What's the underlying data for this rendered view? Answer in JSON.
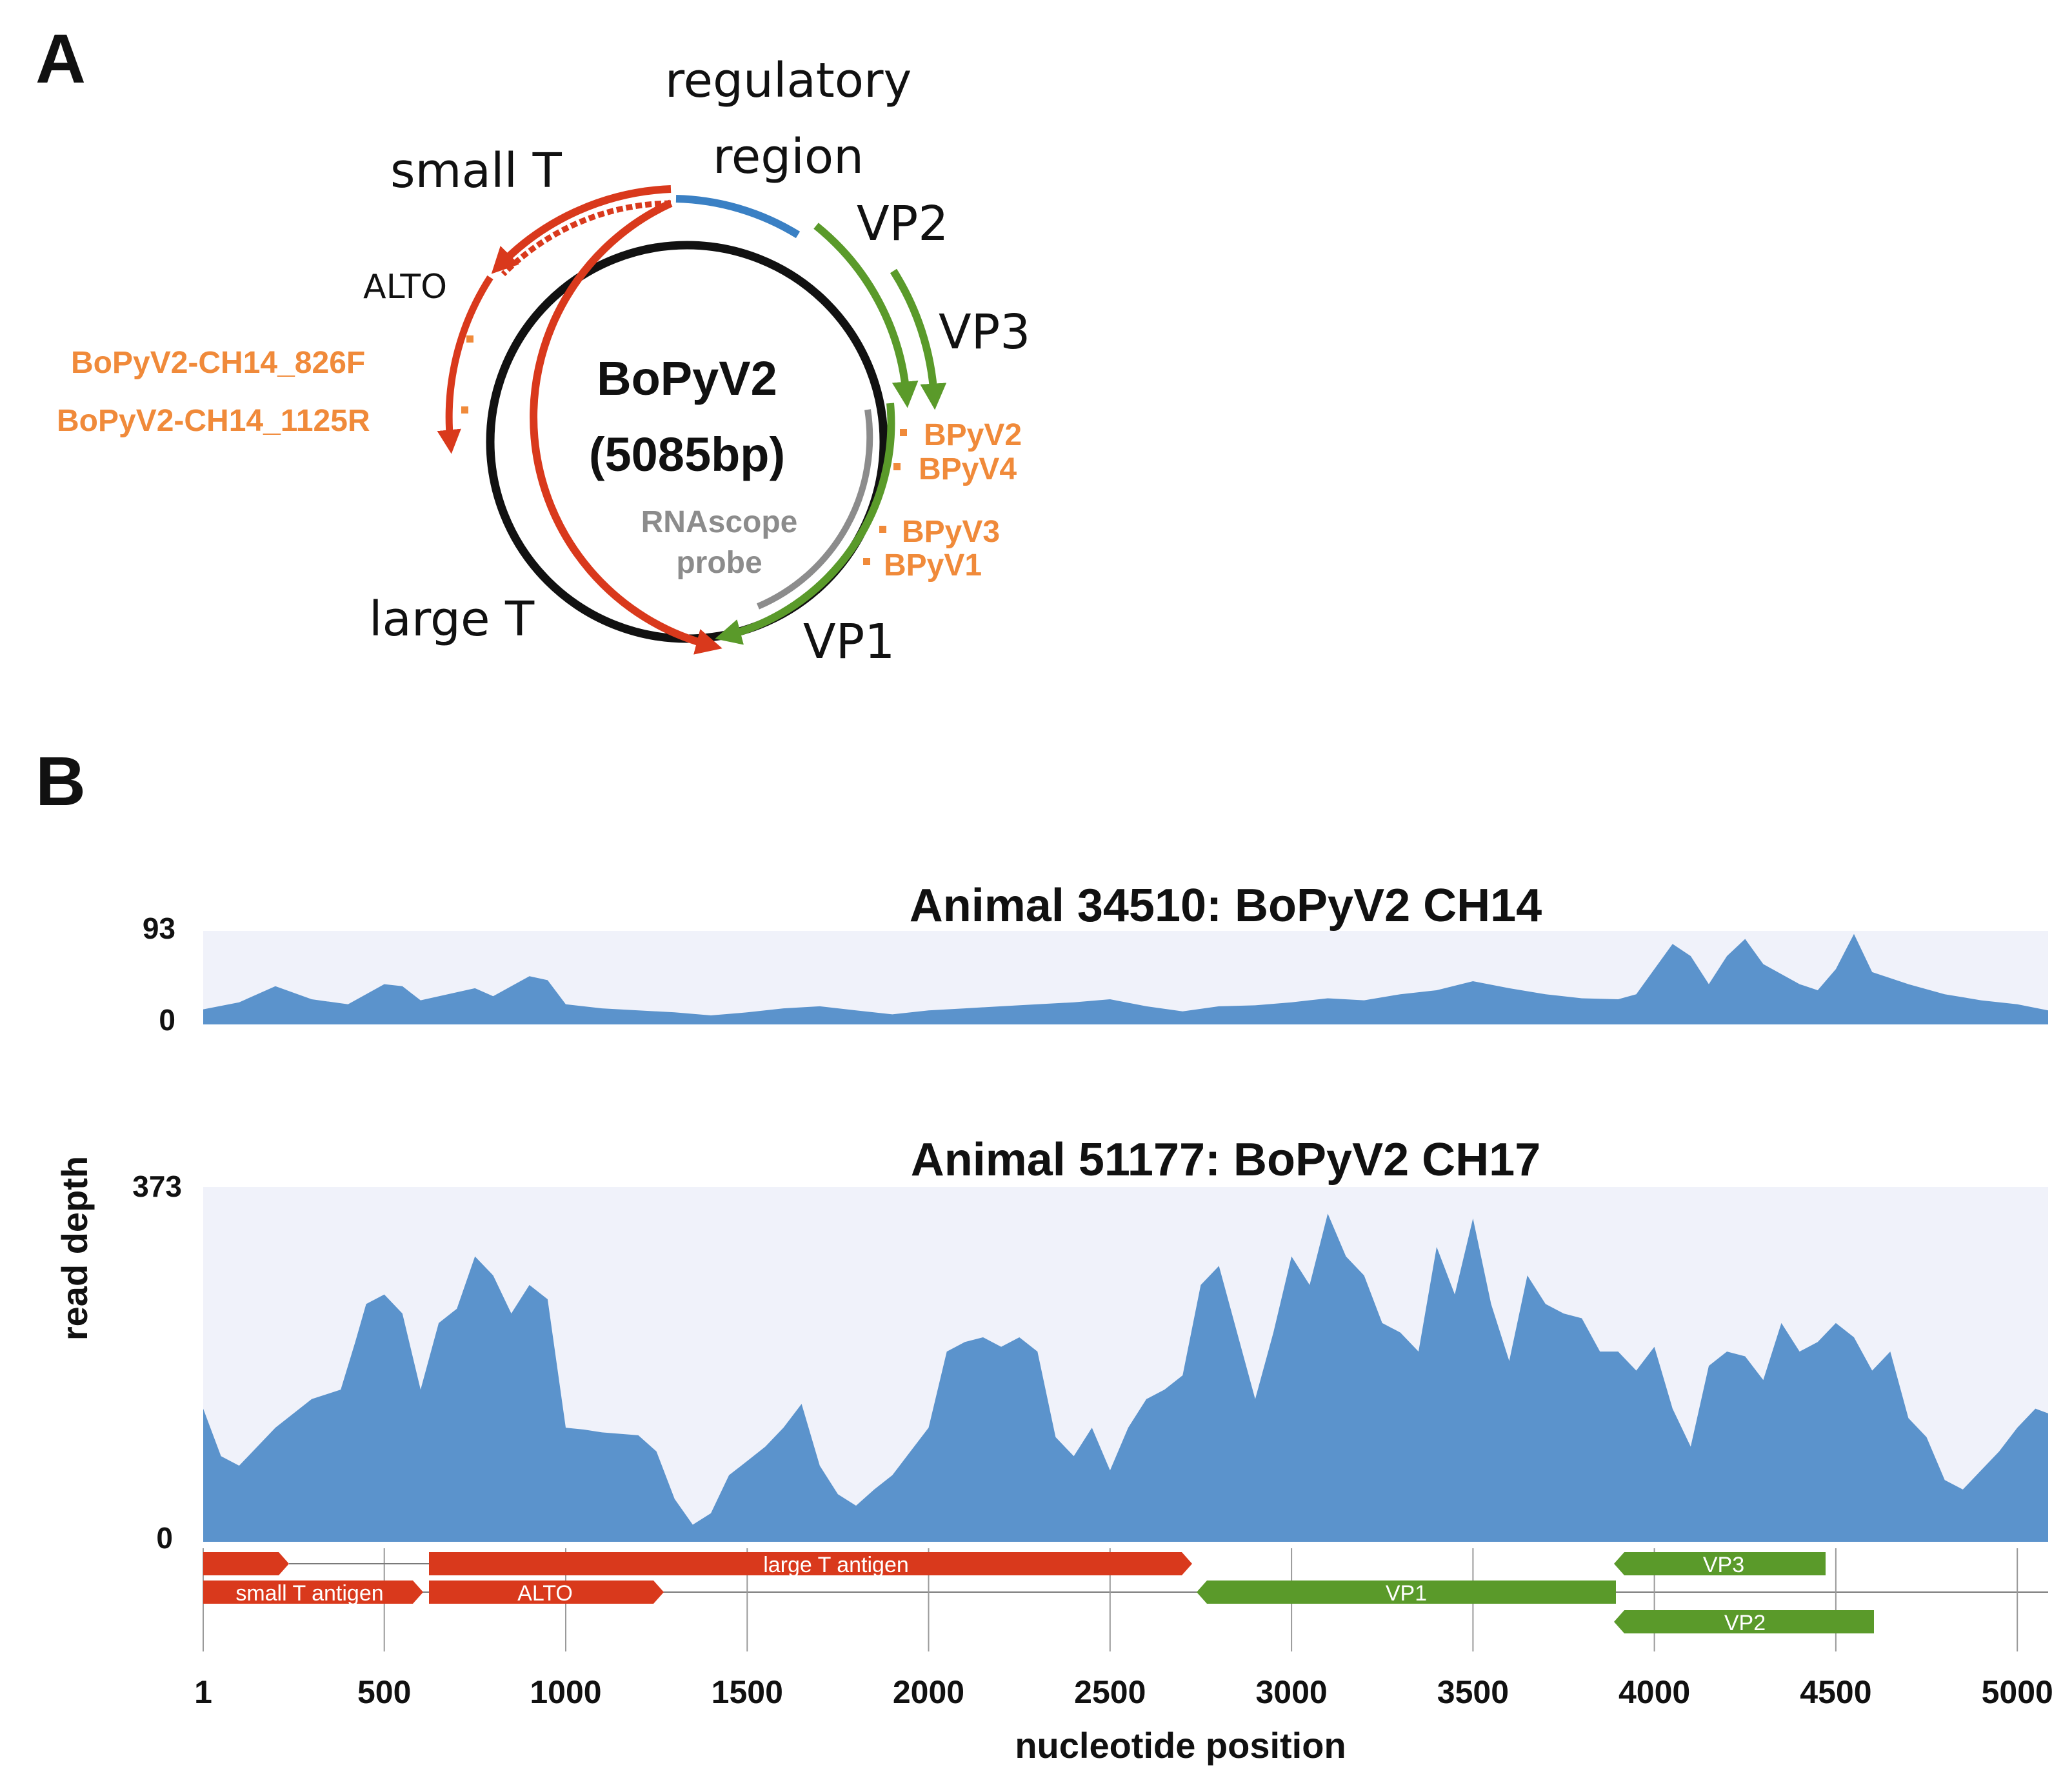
{
  "panel_a": {
    "label": "A",
    "genome_name": "BoPyV2",
    "genome_size": "(5085bp)",
    "labels": {
      "regulatory_line1": "regulatory",
      "regulatory_line2": "region",
      "small_t": "small T",
      "alto": "ALTO",
      "large_t": "large T",
      "vp1": "VP1",
      "vp2": "VP2",
      "vp3": "VP3",
      "rnascope_line1": "RNAscope",
      "rnascope_line2": "probe"
    },
    "primers": {
      "forward": "BoPyV2-CH14_826F",
      "reverse": "BoPyV2-CH14_1125R",
      "bpyv2": "BPyV2",
      "bpyv4": "BPyV4",
      "bpyv3": "BPyV3",
      "bpyv1": "BPyV1"
    }
  },
  "panel_b": {
    "label": "B",
    "ylabel": "read depth",
    "xlabel": "nucleotide position",
    "annotations": {
      "large_t_antigen": "large T antigen",
      "small_t_antigen": "small T antigen",
      "alto": "ALTO",
      "vp1": "VP1",
      "vp2": "VP2",
      "vp3": "VP3"
    }
  },
  "colors": {
    "red": "#d9391c",
    "green": "#5a9a2a",
    "blue": "#3a80c4",
    "orange": "#f08a3a",
    "grey": "#8c8c8c",
    "coverage_fill": "#5b93cc",
    "plot_bg": "#f0f2fa"
  },
  "chart_data": [
    {
      "type": "area",
      "title": "Animal 34510: BoPyV2 CH14",
      "xlabel": "nucleotide position",
      "ylabel": "read depth",
      "xlim": [
        1,
        5085
      ],
      "ylim": [
        0,
        93
      ],
      "ytick_labels": [
        "93",
        "0"
      ],
      "x": [
        1,
        100,
        200,
        300,
        400,
        500,
        550,
        600,
        700,
        750,
        800,
        900,
        950,
        1000,
        1100,
        1200,
        1300,
        1400,
        1500,
        1600,
        1700,
        1800,
        1900,
        2000,
        2100,
        2200,
        2300,
        2400,
        2500,
        2600,
        2700,
        2800,
        2900,
        3000,
        3100,
        3200,
        3300,
        3400,
        3500,
        3600,
        3700,
        3800,
        3900,
        3950,
        4000,
        4050,
        4100,
        4150,
        4200,
        4250,
        4300,
        4400,
        4450,
        4500,
        4550,
        4600,
        4700,
        4800,
        4900,
        5000,
        5085
      ],
      "series": [
        {
          "name": "read depth",
          "values": [
            15,
            22,
            38,
            25,
            20,
            40,
            38,
            24,
            32,
            36,
            28,
            48,
            44,
            20,
            16,
            14,
            12,
            9,
            12,
            16,
            18,
            14,
            10,
            14,
            16,
            18,
            20,
            22,
            25,
            18,
            13,
            18,
            19,
            22,
            26,
            24,
            30,
            34,
            43,
            36,
            30,
            26,
            25,
            30,
            55,
            80,
            68,
            40,
            68,
            85,
            60,
            40,
            34,
            55,
            90,
            52,
            40,
            30,
            24,
            20,
            14
          ]
        }
      ]
    },
    {
      "type": "area",
      "title": "Animal 51177: BoPyV2 CH17",
      "xlabel": "nucleotide position",
      "ylabel": "read depth",
      "xlim": [
        1,
        5085
      ],
      "ylim": [
        0,
        373
      ],
      "ytick_labels": [
        "373",
        "0"
      ],
      "xticks": [
        1,
        500,
        1000,
        1500,
        2000,
        2500,
        3000,
        3500,
        4000,
        4500,
        5000
      ],
      "xtick_labels": [
        "1",
        "500",
        "1000",
        "1500",
        "2000",
        "2500",
        "3000",
        "3500",
        "4000",
        "4500",
        "5000"
      ],
      "x": [
        1,
        50,
        100,
        200,
        300,
        380,
        420,
        450,
        500,
        550,
        600,
        650,
        700,
        750,
        800,
        850,
        900,
        950,
        1000,
        1050,
        1100,
        1200,
        1250,
        1300,
        1350,
        1400,
        1450,
        1500,
        1550,
        1600,
        1650,
        1700,
        1750,
        1800,
        1850,
        1900,
        1950,
        2000,
        2050,
        2100,
        2150,
        2200,
        2250,
        2300,
        2350,
        2400,
        2450,
        2500,
        2550,
        2600,
        2650,
        2700,
        2750,
        2800,
        2850,
        2900,
        2950,
        3000,
        3050,
        3100,
        3150,
        3200,
        3250,
        3300,
        3350,
        3400,
        3450,
        3500,
        3550,
        3600,
        3650,
        3700,
        3750,
        3800,
        3850,
        3900,
        3950,
        4000,
        4050,
        4100,
        4150,
        4200,
        4250,
        4300,
        4350,
        4400,
        4450,
        4500,
        4550,
        4600,
        4650,
        4700,
        4750,
        4800,
        4850,
        4900,
        4950,
        5000,
        5050,
        5085
      ],
      "series": [
        {
          "name": "read depth",
          "values": [
            140,
            90,
            80,
            120,
            150,
            160,
            210,
            250,
            260,
            240,
            160,
            230,
            245,
            300,
            280,
            240,
            270,
            255,
            120,
            118,
            115,
            112,
            95,
            45,
            18,
            30,
            70,
            85,
            100,
            120,
            145,
            80,
            50,
            38,
            55,
            70,
            95,
            120,
            200,
            210,
            215,
            205,
            215,
            200,
            110,
            90,
            120,
            75,
            120,
            150,
            160,
            175,
            270,
            290,
            220,
            150,
            220,
            300,
            270,
            345,
            300,
            280,
            230,
            220,
            200,
            310,
            260,
            340,
            250,
            190,
            280,
            250,
            240,
            235,
            200,
            200,
            180,
            205,
            140,
            100,
            185,
            200,
            195,
            170,
            230,
            200,
            210,
            230,
            215,
            180,
            200,
            130,
            110,
            65,
            55,
            75,
            95,
            120,
            140,
            135
          ]
        }
      ]
    }
  ]
}
